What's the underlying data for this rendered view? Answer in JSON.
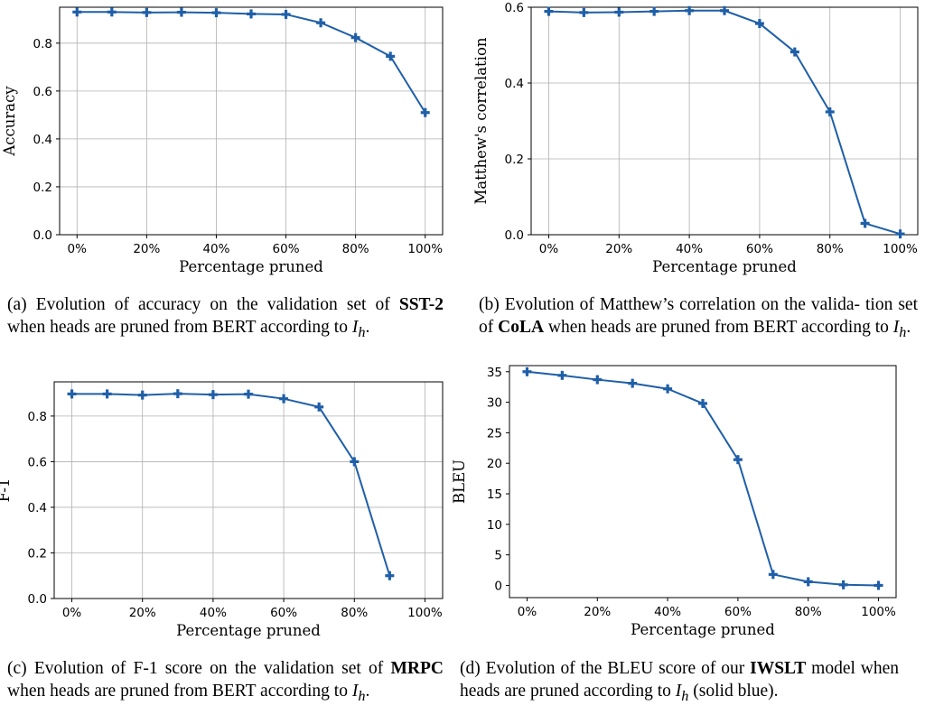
{
  "chart_data": [
    {
      "id": "a",
      "type": "line",
      "x": [
        0,
        10,
        20,
        30,
        40,
        50,
        60,
        70,
        80,
        90,
        100
      ],
      "categories": [
        "0%",
        "20%",
        "40%",
        "60%",
        "80%",
        "100%"
      ],
      "values": [
        0.93,
        0.93,
        0.928,
        0.929,
        0.927,
        0.922,
        0.92,
        0.885,
        0.823,
        0.745,
        0.51
      ],
      "xlim": [
        -5,
        105
      ],
      "ylim": [
        0,
        0.95
      ],
      "yticks": [
        0.0,
        0.2,
        0.4,
        0.6,
        0.8
      ],
      "yticklabels": [
        "0.0",
        "0.2",
        "0.4",
        "0.6",
        "0.8"
      ],
      "xlabel": "Percentage pruned",
      "ylabel": "Accuracy",
      "grid": true,
      "caption": {
        "label": "(a)",
        "text1": "Evolution of accuracy on the validation set of",
        "dataset": "SST-2",
        "text2": "when heads are pruned from BERT according to",
        "ih_main": "I",
        "ih_sub": "h",
        "tail": "."
      }
    },
    {
      "id": "b",
      "type": "line",
      "x": [
        0,
        10,
        20,
        30,
        40,
        50,
        60,
        70,
        80,
        90,
        100
      ],
      "categories": [
        "0%",
        "20%",
        "40%",
        "60%",
        "80%",
        "100%"
      ],
      "values": [
        0.589,
        0.586,
        0.587,
        0.589,
        0.591,
        0.591,
        0.557,
        0.482,
        0.324,
        0.03,
        0.002
      ],
      "xlim": [
        -5,
        105
      ],
      "ylim": [
        0,
        0.6
      ],
      "yticks": [
        0.0,
        0.2,
        0.4,
        0.6
      ],
      "yticklabels": [
        "0.0",
        "0.2",
        "0.4",
        "0.6"
      ],
      "xlabel": "Percentage pruned",
      "ylabel": "Matthew's correlation",
      "grid": true,
      "caption": {
        "label": "(b)",
        "text1": "Evolution of Matthew’s correlation on the valida- tion set of",
        "dataset": "CoLA",
        "text2": "when heads are pruned from BERT according to",
        "ih_main": "I",
        "ih_sub": "h",
        "tail": "."
      }
    },
    {
      "id": "c",
      "type": "line",
      "x": [
        0,
        10,
        20,
        30,
        40,
        50,
        60,
        70,
        80,
        90
      ],
      "categories": [
        "0%",
        "20%",
        "40%",
        "60%",
        "80%",
        "100%"
      ],
      "values": [
        0.897,
        0.897,
        0.892,
        0.898,
        0.894,
        0.896,
        0.876,
        0.84,
        0.6,
        0.1
      ],
      "xlim": [
        -5,
        105
      ],
      "ylim": [
        0,
        0.95
      ],
      "yticks": [
        0.0,
        0.2,
        0.4,
        0.6,
        0.8
      ],
      "yticklabels": [
        "0.0",
        "0.2",
        "0.4",
        "0.6",
        "0.8"
      ],
      "xlabel": "Percentage pruned",
      "ylabel": "F-1",
      "grid": true,
      "caption": {
        "label": "(c)",
        "text1": "Evolution of F-1 score on the validation set of",
        "dataset": "MRPC",
        "text2": "when heads are pruned from BERT according to",
        "ih_main": "I",
        "ih_sub": "h",
        "tail": "."
      }
    },
    {
      "id": "d",
      "type": "line",
      "x": [
        0,
        10,
        20,
        30,
        40,
        50,
        60,
        70,
        80,
        90,
        100
      ],
      "categories": [
        "0%",
        "20%",
        "40%",
        "60%",
        "80%",
        "100%"
      ],
      "values": [
        35.0,
        34.4,
        33.7,
        33.1,
        32.2,
        29.8,
        20.6,
        1.8,
        0.6,
        0.1,
        0.0
      ],
      "xlim": [
        -5,
        105
      ],
      "ylim": [
        -2,
        36
      ],
      "yticks": [
        0,
        5,
        10,
        15,
        20,
        25,
        30,
        35
      ],
      "yticklabels": [
        "0",
        "5",
        "10",
        "15",
        "20",
        "25",
        "30",
        "35"
      ],
      "xlabel": "Percentage pruned",
      "ylabel": "BLEU",
      "grid": false,
      "caption": {
        "label": "(d)",
        "text1": "Evolution of the BLEU score of our",
        "dataset": "IWSLT",
        "text2": "model when heads are pruned according to",
        "ih_main": "I",
        "ih_sub": "h",
        "tail": "(solid blue)."
      }
    }
  ],
  "colors": {
    "series": "#1f5fa8",
    "grid": "#b0b0b0"
  }
}
